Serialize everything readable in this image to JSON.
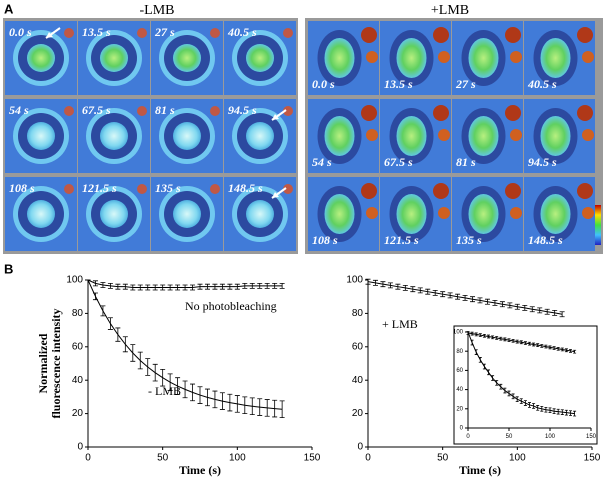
{
  "panel_a": {
    "label": "A",
    "groups": [
      {
        "title": "-LMB",
        "times": [
          "0.0 s",
          "13.5 s",
          "27 s",
          "40.5 s",
          "54 s",
          "67.5 s",
          "81 s",
          "94.5 s",
          "108 s",
          "121.5 s",
          "135 s",
          "148.5 s"
        ]
      },
      {
        "title": "+LMB",
        "times": [
          "0.0 s",
          "13.5 s",
          "27 s",
          "40.5 s",
          "54 s",
          "67.5 s",
          "81 s",
          "94.5 s",
          "108 s",
          "121.5 s",
          "135 s",
          "148.5 s"
        ]
      }
    ]
  },
  "panel_b_label": "B",
  "chart_data": [
    {
      "type": "line",
      "xlabel": "Time (s)",
      "ylabel": [
        "Normalized",
        "fluorescence intensity"
      ],
      "xlim": [
        0,
        150
      ],
      "xticks": [
        0,
        50,
        100,
        150
      ],
      "ylim": [
        0,
        100
      ],
      "yticks": [
        0,
        20,
        40,
        60,
        80,
        100
      ],
      "annotations": [
        "No photobleaching",
        "- LMB"
      ],
      "x": [
        0,
        5,
        10,
        15,
        20,
        25,
        30,
        35,
        40,
        45,
        50,
        55,
        60,
        65,
        70,
        75,
        80,
        85,
        90,
        95,
        100,
        105,
        110,
        115,
        120,
        125,
        130
      ],
      "series": [
        {
          "color": "#000000",
          "values": [
            100,
            98,
            97,
            96.5,
            96,
            96,
            95.5,
            95.5,
            95.5,
            95.5,
            95.5,
            95.5,
            95.5,
            95.5,
            95.5,
            96,
            96,
            96,
            96,
            96,
            96,
            96.5,
            96.5,
            96.5,
            96.5,
            96.5,
            96.5
          ],
          "errors": [
            0,
            1.5,
            1.5,
            1.5,
            1.5,
            1.5,
            1.5,
            1.5,
            1.5,
            1.5,
            1.5,
            1.5,
            1.5,
            1.5,
            1.5,
            1.5,
            1.5,
            1.5,
            1.5,
            1.5,
            1.5,
            1.5,
            1.5,
            1.5,
            1.5,
            1.5,
            1.5
          ]
        },
        {
          "color": "#000000",
          "values": [
            100,
            90.2,
            81.5,
            73.9,
            67.3,
            61.5,
            56.3,
            51.8,
            47.9,
            44.5,
            41.5,
            38.8,
            36.5,
            34.5,
            32.7,
            31.1,
            29.7,
            28.5,
            27.5,
            26.6,
            25.8,
            25,
            24.4,
            23.9,
            23.4,
            23,
            22.6
          ],
          "errors": [
            0,
            2,
            3,
            3.5,
            4,
            4.5,
            5,
            5,
            5,
            5,
            5,
            5,
            5,
            5,
            5,
            5,
            5,
            5,
            5,
            5,
            5,
            5,
            5,
            5,
            5,
            5,
            5
          ]
        }
      ]
    },
    {
      "type": "line",
      "xlabel": "Time (s)",
      "xlim": [
        0,
        150
      ],
      "xticks": [
        0,
        50,
        100,
        150
      ],
      "ylim": [
        0,
        100
      ],
      "yticks": [
        0,
        20,
        40,
        60,
        80,
        100
      ],
      "annotations": [
        "+ LMB"
      ],
      "x": [
        0,
        5,
        10,
        15,
        20,
        25,
        30,
        35,
        40,
        45,
        50,
        55,
        60,
        65,
        70,
        75,
        80,
        85,
        90,
        95,
        100,
        105,
        110,
        115,
        120,
        125,
        130
      ],
      "series": [
        {
          "color": "#000000",
          "values": [
            99,
            98.3,
            97.5,
            96.8,
            96,
            95.3,
            94.5,
            93.8,
            93,
            92.3,
            91.5,
            90.8,
            90,
            89.3,
            88.5,
            87.8,
            87,
            86.3,
            85.5,
            84.8,
            84,
            83.3,
            82.5,
            81.8,
            81,
            80.3,
            79.5
          ],
          "errors": [
            1.5,
            1.5,
            1.5,
            1.5,
            1.5,
            1.5,
            1.5,
            1.5,
            1.5,
            1.5,
            1.5,
            1.5,
            1.5,
            1.5,
            1.5,
            1.5,
            1.5,
            1.5,
            1.5,
            1.5,
            1.5,
            1.5,
            1.5,
            1.5,
            1.5,
            1.5,
            1.5
          ]
        }
      ]
    },
    {
      "type": "line",
      "xlim": [
        0,
        150
      ],
      "xticks": [
        0,
        50,
        100,
        150
      ],
      "ylim": [
        0,
        100
      ],
      "yticks": [
        0,
        20,
        40,
        60,
        80,
        100
      ],
      "x": [
        0,
        5,
        10,
        15,
        20,
        25,
        30,
        35,
        40,
        45,
        50,
        55,
        60,
        65,
        70,
        75,
        80,
        85,
        90,
        95,
        100,
        105,
        110,
        115,
        120,
        125,
        130
      ],
      "series": [
        {
          "color": "#000000",
          "values": [
            99,
            98.3,
            97.5,
            96.8,
            96,
            95.3,
            94.5,
            93.8,
            93,
            92.3,
            91.5,
            90.8,
            90,
            89.3,
            88.5,
            87.8,
            87,
            86.3,
            85.5,
            84.8,
            84,
            83.3,
            82.5,
            81.8,
            81,
            80.3,
            79.5
          ],
          "errors": [
            1.5,
            1.5,
            1.5,
            1.5,
            1.5,
            1.5,
            1.5,
            1.5,
            1.5,
            1.5,
            1.5,
            1.5,
            1.5,
            1.5,
            1.5,
            1.5,
            1.5,
            1.5,
            1.5,
            1.5,
            1.5,
            1.5,
            1.5,
            1.5,
            1.5,
            1.5,
            1.5
          ]
        },
        {
          "color": "#000000",
          "values": [
            100,
            89,
            79,
            71,
            64,
            58,
            52,
            47,
            43,
            39,
            36,
            33,
            30,
            28,
            26,
            24,
            23,
            21,
            20,
            19,
            18.5,
            17.5,
            17,
            16.5,
            16,
            15.5,
            15
          ],
          "errors": [
            0,
            2.5,
            2.5,
            2.5,
            2.5,
            2.5,
            2.5,
            2.5,
            2.5,
            2.5,
            2.5,
            2.5,
            2.5,
            2.5,
            2.5,
            2.5,
            2.5,
            2.5,
            2.5,
            2.5,
            2.5,
            2.5,
            2.5,
            2.5,
            2.5,
            2.5,
            2.5
          ]
        }
      ]
    }
  ]
}
